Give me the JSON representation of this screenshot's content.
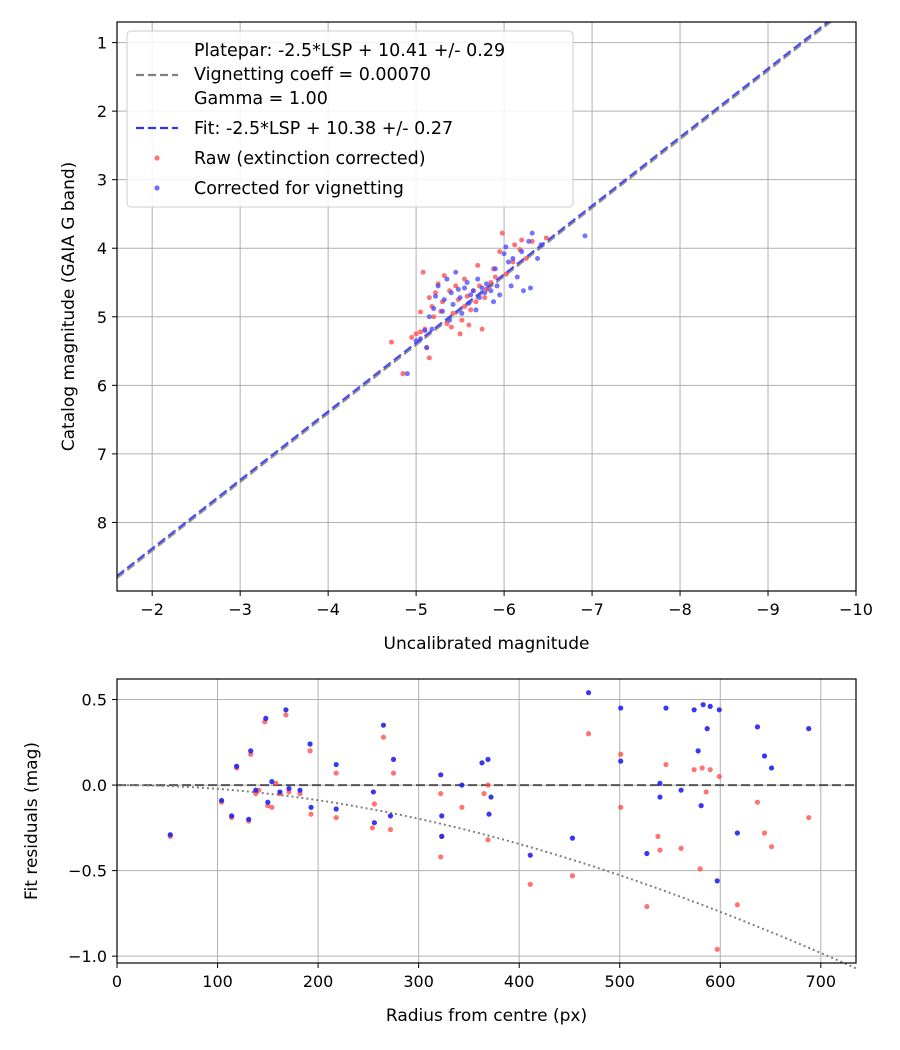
{
  "chart_data": [
    {
      "type": "scatter",
      "xlabel": "Uncalibrated magnitude",
      "ylabel": "Catalog magnitude (GAIA G band)",
      "xlim": [
        -1.6,
        -10
      ],
      "ylim": [
        9.0,
        0.7
      ],
      "x_ticks": [
        -2,
        -3,
        -4,
        -5,
        -6,
        -7,
        -8,
        -9,
        -10
      ],
      "y_ticks": [
        1,
        2,
        3,
        4,
        5,
        6,
        7,
        8
      ],
      "grid": true,
      "legend": "top-left",
      "legend_entries": [
        {
          "line1": "Platepar: -2.5*LSP + 10.41 +/- 0.29",
          "line2": "Vignetting coeff = 0.00070",
          "line3": "Gamma = 1.00",
          "style": "dashed",
          "color": "#808080"
        },
        {
          "line1": "Fit: -2.5*LSP + 10.38 +/- 0.27",
          "style": "dashed",
          "color": "#3333ee"
        },
        {
          "line1": "Raw (extinction corrected)",
          "style": "marker",
          "color": "#ff4444"
        },
        {
          "line1": "Corrected for vignetting",
          "style": "marker",
          "color": "#4444ff"
        }
      ],
      "lines": [
        {
          "name": "Platepar",
          "slope": 1.0,
          "intercept": 10.41,
          "color": "#808080"
        },
        {
          "name": "Fit",
          "slope": 1.0,
          "intercept": 10.38,
          "color": "#3333ee"
        }
      ],
      "series": [
        {
          "name": "Raw (extinction corrected)",
          "color": "#ff4444",
          "points": [
            [
              -4.72,
              5.37
            ],
            [
              -4.85,
              5.83
            ],
            [
              -4.95,
              5.3
            ],
            [
              -5.0,
              5.25
            ],
            [
              -5.05,
              4.93
            ],
            [
              -5.05,
              5.22
            ],
            [
              -5.08,
              4.35
            ],
            [
              -5.1,
              5.18
            ],
            [
              -5.12,
              5.45
            ],
            [
              -5.15,
              5.6
            ],
            [
              -5.15,
              4.72
            ],
            [
              -5.18,
              4.85
            ],
            [
              -5.2,
              5.0
            ],
            [
              -5.22,
              4.65
            ],
            [
              -5.25,
              4.52
            ],
            [
              -5.28,
              4.92
            ],
            [
              -5.3,
              4.78
            ],
            [
              -5.32,
              4.4
            ],
            [
              -5.35,
              5.1
            ],
            [
              -5.38,
              4.62
            ],
            [
              -5.4,
              5.15
            ],
            [
              -5.42,
              4.95
            ],
            [
              -5.45,
              4.55
            ],
            [
              -5.48,
              4.75
            ],
            [
              -5.5,
              5.25
            ],
            [
              -5.52,
              5.05
            ],
            [
              -5.55,
              4.45
            ],
            [
              -5.55,
              4.85
            ],
            [
              -5.58,
              4.7
            ],
            [
              -5.6,
              5.12
            ],
            [
              -5.62,
              4.9
            ],
            [
              -5.65,
              4.62
            ],
            [
              -5.68,
              4.78
            ],
            [
              -5.7,
              4.25
            ],
            [
              -5.72,
              4.55
            ],
            [
              -5.75,
              5.18
            ],
            [
              -5.78,
              4.72
            ],
            [
              -5.8,
              4.6
            ],
            [
              -5.85,
              4.5
            ],
            [
              -5.88,
              4.3
            ],
            [
              -5.9,
              4.42
            ],
            [
              -5.95,
              4.05
            ],
            [
              -5.98,
              3.78
            ],
            [
              -6.02,
              4.38
            ],
            [
              -6.1,
              4.2
            ],
            [
              -6.12,
              3.95
            ],
            [
              -6.18,
              4.02
            ],
            [
              -6.2,
              3.88
            ],
            [
              -6.25,
              4.15
            ],
            [
              -6.32,
              3.9
            ],
            [
              -6.48,
              3.85
            ]
          ]
        },
        {
          "name": "Corrected for vignetting",
          "color": "#4444ff",
          "points": [
            [
              -4.9,
              5.83
            ],
            [
              -5.0,
              5.35
            ],
            [
              -5.05,
              5.32
            ],
            [
              -5.1,
              5.2
            ],
            [
              -5.12,
              5.45
            ],
            [
              -5.15,
              5.0
            ],
            [
              -5.18,
              5.18
            ],
            [
              -5.2,
              4.88
            ],
            [
              -5.22,
              4.7
            ],
            [
              -5.25,
              4.55
            ],
            [
              -5.3,
              4.92
            ],
            [
              -5.32,
              4.75
            ],
            [
              -5.35,
              4.45
            ],
            [
              -5.38,
              5.05
            ],
            [
              -5.4,
              4.65
            ],
            [
              -5.42,
              4.82
            ],
            [
              -5.45,
              4.35
            ],
            [
              -5.48,
              4.6
            ],
            [
              -5.5,
              4.72
            ],
            [
              -5.52,
              4.95
            ],
            [
              -5.55,
              4.58
            ],
            [
              -5.58,
              4.5
            ],
            [
              -5.6,
              4.8
            ],
            [
              -5.62,
              4.68
            ],
            [
              -5.65,
              4.62
            ],
            [
              -5.68,
              4.9
            ],
            [
              -5.7,
              4.45
            ],
            [
              -5.72,
              4.72
            ],
            [
              -5.75,
              4.58
            ],
            [
              -5.78,
              4.65
            ],
            [
              -5.8,
              4.52
            ],
            [
              -5.85,
              4.62
            ],
            [
              -5.88,
              4.78
            ],
            [
              -5.9,
              4.3
            ],
            [
              -5.92,
              4.55
            ],
            [
              -5.95,
              4.68
            ],
            [
              -6.0,
              4.08
            ],
            [
              -6.02,
              3.98
            ],
            [
              -6.05,
              4.2
            ],
            [
              -6.08,
              4.55
            ],
            [
              -6.1,
              4.15
            ],
            [
              -6.15,
              4.42
            ],
            [
              -6.2,
              4.05
            ],
            [
              -6.22,
              4.62
            ],
            [
              -6.28,
              3.9
            ],
            [
              -6.3,
              4.58
            ],
            [
              -6.32,
              3.78
            ],
            [
              -6.38,
              4.15
            ],
            [
              -6.42,
              3.95
            ],
            [
              -6.92,
              3.82
            ]
          ]
        }
      ]
    },
    {
      "type": "scatter",
      "xlabel": "Radius from centre (px)",
      "ylabel": "Fit residuals (mag)",
      "xlim": [
        0,
        735
      ],
      "ylim": [
        -1.04,
        0.62
      ],
      "x_ticks": [
        0,
        100,
        200,
        300,
        400,
        500,
        600,
        700
      ],
      "y_ticks": [
        0.5,
        0.0,
        -0.5,
        -1.0
      ],
      "y_tick_labels": [
        "0.5",
        "0.0",
        "−0.5",
        "−1.0"
      ],
      "grid": true,
      "zero_line": 0.0,
      "vignetting_curve_coeff": 0.0007,
      "series": [
        {
          "name": "Raw (extinction corrected)",
          "color": "#ff4444",
          "points": [
            [
              53,
              -0.3
            ],
            [
              104,
              -0.1
            ],
            [
              114,
              -0.19
            ],
            [
              119,
              0.1
            ],
            [
              131,
              -0.21
            ],
            [
              133,
              0.18
            ],
            [
              138,
              -0.05
            ],
            [
              141,
              -0.03
            ],
            [
              147,
              0.37
            ],
            [
              150,
              -0.12
            ],
            [
              154,
              -0.13
            ],
            [
              158,
              0.01
            ],
            [
              162,
              -0.05
            ],
            [
              168,
              0.41
            ],
            [
              171,
              -0.04
            ],
            [
              182,
              -0.05
            ],
            [
              192,
              0.2
            ],
            [
              193,
              -0.17
            ],
            [
              218,
              0.07
            ],
            [
              218,
              -0.19
            ],
            [
              254,
              -0.25
            ],
            [
              256,
              -0.11
            ],
            [
              265,
              0.28
            ],
            [
              272,
              -0.26
            ],
            [
              275,
              0.07
            ],
            [
              322,
              -0.42
            ],
            [
              322,
              -0.05
            ],
            [
              323,
              -0.3
            ],
            [
              343,
              -0.13
            ],
            [
              365,
              -0.05
            ],
            [
              369,
              0.0
            ],
            [
              369,
              -0.32
            ],
            [
              411,
              -0.58
            ],
            [
              453,
              -0.53
            ],
            [
              469,
              0.3
            ],
            [
              501,
              0.18
            ],
            [
              501,
              -0.13
            ],
            [
              527,
              -0.71
            ],
            [
              538,
              -0.3
            ],
            [
              540,
              -0.38
            ],
            [
              546,
              0.12
            ],
            [
              561,
              -0.37
            ],
            [
              574,
              0.09
            ],
            [
              580,
              -0.49
            ],
            [
              582,
              0.1
            ],
            [
              586,
              -0.04
            ],
            [
              590,
              0.09
            ],
            [
              597,
              -0.96
            ],
            [
              599,
              0.05
            ],
            [
              617,
              -0.7
            ],
            [
              637,
              -0.1
            ],
            [
              644,
              -0.28
            ],
            [
              651,
              -0.36
            ],
            [
              688,
              -0.19
            ]
          ]
        },
        {
          "name": "Corrected for vignetting",
          "color": "#2222ee",
          "points": [
            [
              53,
              -0.29
            ],
            [
              104,
              -0.09
            ],
            [
              114,
              -0.18
            ],
            [
              119,
              0.11
            ],
            [
              131,
              -0.2
            ],
            [
              133,
              0.2
            ],
            [
              138,
              -0.03
            ],
            [
              148,
              0.39
            ],
            [
              150,
              -0.1
            ],
            [
              154,
              0.02
            ],
            [
              162,
              -0.04
            ],
            [
              168,
              0.44
            ],
            [
              171,
              -0.02
            ],
            [
              182,
              -0.03
            ],
            [
              192,
              0.24
            ],
            [
              193,
              -0.13
            ],
            [
              218,
              0.12
            ],
            [
              218,
              -0.14
            ],
            [
              255,
              -0.04
            ],
            [
              256,
              -0.22
            ],
            [
              265,
              0.35
            ],
            [
              272,
              -0.18
            ],
            [
              275,
              0.15
            ],
            [
              322,
              0.06
            ],
            [
              323,
              -0.18
            ],
            [
              323,
              -0.3
            ],
            [
              343,
              0.0
            ],
            [
              363,
              0.13
            ],
            [
              369,
              0.15
            ],
            [
              370,
              -0.17
            ],
            [
              372,
              -0.07
            ],
            [
              411,
              -0.41
            ],
            [
              453,
              -0.31
            ],
            [
              469,
              0.54
            ],
            [
              501,
              0.45
            ],
            [
              501,
              0.14
            ],
            [
              527,
              -0.4
            ],
            [
              540,
              0.01
            ],
            [
              540,
              -0.07
            ],
            [
              546,
              0.45
            ],
            [
              561,
              -0.03
            ],
            [
              574,
              0.44
            ],
            [
              578,
              0.2
            ],
            [
              581,
              -0.12
            ],
            [
              583,
              0.47
            ],
            [
              587,
              0.33
            ],
            [
              590,
              0.46
            ],
            [
              597,
              -0.56
            ],
            [
              599,
              0.44
            ],
            [
              617,
              -0.28
            ],
            [
              637,
              0.34
            ],
            [
              644,
              0.17
            ],
            [
              651,
              0.1
            ],
            [
              688,
              0.33
            ]
          ]
        }
      ]
    }
  ]
}
